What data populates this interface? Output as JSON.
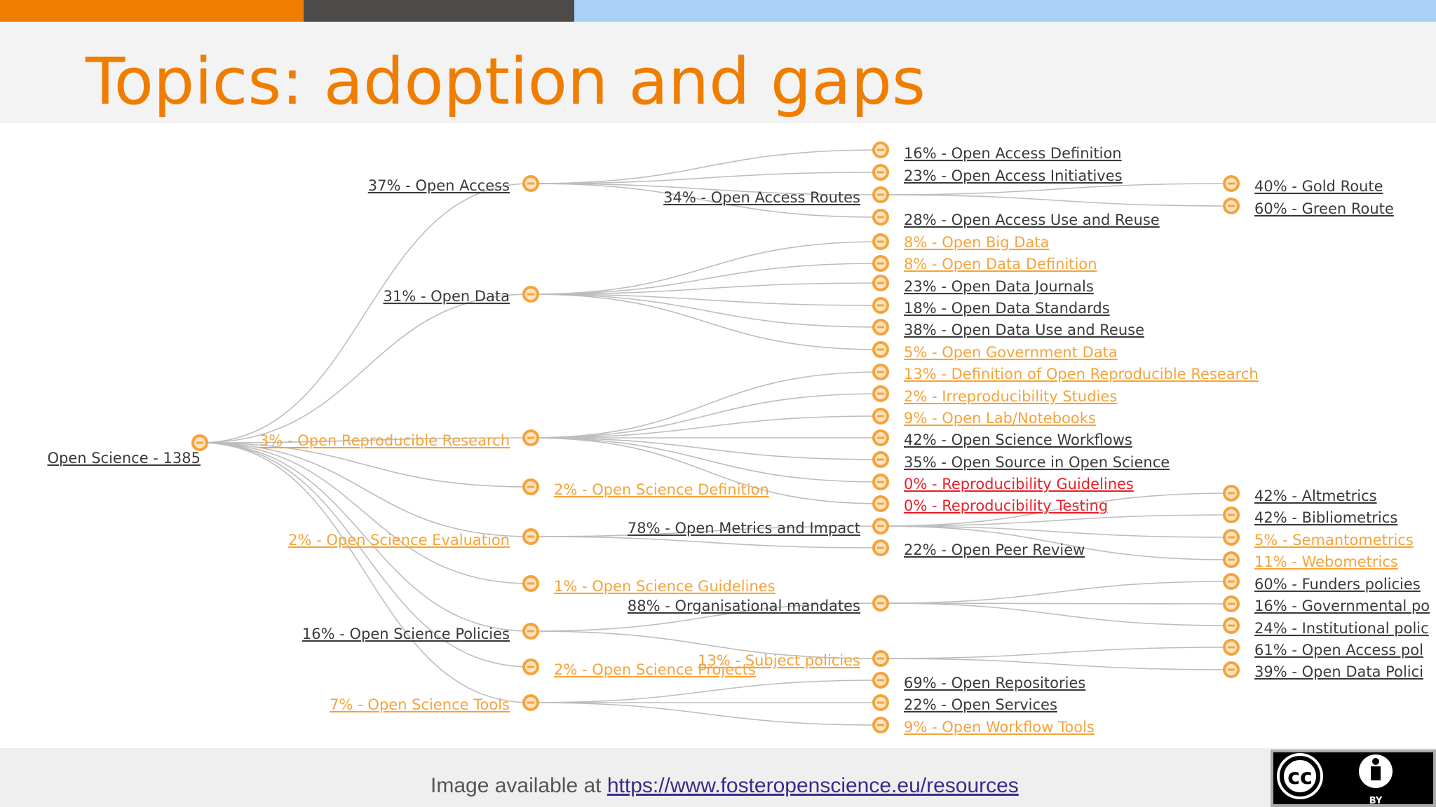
{
  "slide": {
    "title": "Topics: adoption and gaps",
    "credit_text": "Image available at",
    "credit_link": "https://www.fosteropenscience.eu/resources",
    "license_label": "BY",
    "license_icon": "cc-by-icon"
  },
  "colors": {
    "bar_orange": "#ef7d00",
    "bar_dark": "#4d4a4a",
    "bar_light": "#a9d1f7",
    "title": "#ef7d00",
    "node": "#f5a33a",
    "link": "#bdbdbd",
    "label_normal": "#3a3a3a",
    "label_low": "#f5a33a",
    "label_zero": "#e8202a"
  },
  "tree": {
    "root": {
      "label": "Open Science - 1385",
      "status": "normal"
    },
    "level1": [
      {
        "label": "37% - Open Access",
        "status": "normal"
      },
      {
        "label": "31% - Open Data",
        "status": "normal"
      },
      {
        "label": "3% - Open Reproducible Research",
        "status": "low"
      },
      {
        "label": "2% - Open Science Definition",
        "status": "low"
      },
      {
        "label": "2% - Open Science Evaluation",
        "status": "low"
      },
      {
        "label": "1% - Open Science Guidelines",
        "status": "low"
      },
      {
        "label": "16% - Open Science Policies",
        "status": "normal"
      },
      {
        "label": "2% - Open Science Projects",
        "status": "low"
      },
      {
        "label": "7% - Open Science Tools",
        "status": "low"
      }
    ],
    "level2": [
      {
        "label": "16% - Open Access Definition",
        "status": "normal",
        "parent": 0
      },
      {
        "label": "23% - Open Access Initiatives",
        "status": "normal",
        "parent": 0
      },
      {
        "label": "34% - Open Access Routes",
        "status": "normal",
        "parent": 0
      },
      {
        "label": "28% - Open Access Use and Reuse",
        "status": "normal",
        "parent": 0
      },
      {
        "label": "8% - Open Big Data",
        "status": "low",
        "parent": 1
      },
      {
        "label": "8% - Open Data Definition",
        "status": "low",
        "parent": 1
      },
      {
        "label": "23% - Open Data Journals",
        "status": "normal",
        "parent": 1
      },
      {
        "label": "18% - Open Data Standards",
        "status": "normal",
        "parent": 1
      },
      {
        "label": "38% - Open Data Use and Reuse",
        "status": "normal",
        "parent": 1
      },
      {
        "label": "5% - Open Government Data",
        "status": "low",
        "parent": 1
      },
      {
        "label": "13% - Definition of Open Reproducible Research",
        "status": "low",
        "parent": 2
      },
      {
        "label": "2% - Irreproducibility Studies",
        "status": "low",
        "parent": 2
      },
      {
        "label": "9% - Open Lab/Notebooks",
        "status": "low",
        "parent": 2
      },
      {
        "label": "42% - Open Science Workflows",
        "status": "normal",
        "parent": 2
      },
      {
        "label": "35% - Open Source in Open Science",
        "status": "normal",
        "parent": 2
      },
      {
        "label": "0% - Reproducibility Guidelines",
        "status": "zero",
        "parent": 2
      },
      {
        "label": "0% - Reproducibility Testing",
        "status": "zero",
        "parent": 2
      },
      {
        "label": "78% - Open Metrics and Impact",
        "status": "normal",
        "parent": 4
      },
      {
        "label": "22% - Open Peer Review",
        "status": "normal",
        "parent": 4
      },
      {
        "label": "88% - Organisational mandates",
        "status": "normal",
        "parent": 6
      },
      {
        "label": "13% - Subject policies",
        "status": "low",
        "parent": 6
      },
      {
        "label": "69% - Open Repositories",
        "status": "normal",
        "parent": 8
      },
      {
        "label": "22% - Open Services",
        "status": "normal",
        "parent": 8
      },
      {
        "label": "9% - Open Workflow Tools",
        "status": "low",
        "parent": 8
      }
    ],
    "level3": [
      {
        "label": "40% - Gold Route",
        "status": "normal",
        "parent": 2
      },
      {
        "label": "60% - Green Route",
        "status": "normal",
        "parent": 2
      },
      {
        "label": "42% - Altmetrics",
        "status": "normal",
        "parent": 17
      },
      {
        "label": "42% - Bibliometrics",
        "status": "normal",
        "parent": 17
      },
      {
        "label": "5% - Semantometrics",
        "status": "low",
        "parent": 17
      },
      {
        "label": "11% - Webometrics",
        "status": "low",
        "parent": 17
      },
      {
        "label": "60% - Funders policies",
        "status": "normal",
        "parent": 19
      },
      {
        "label": "16% - Governmental po",
        "status": "normal",
        "parent": 19
      },
      {
        "label": "24% - Institutional polic",
        "status": "normal",
        "parent": 19
      },
      {
        "label": "61% - Open Access pol",
        "status": "normal",
        "parent": 20
      },
      {
        "label": "39% - Open Data Polici",
        "status": "normal",
        "parent": 20
      }
    ]
  }
}
